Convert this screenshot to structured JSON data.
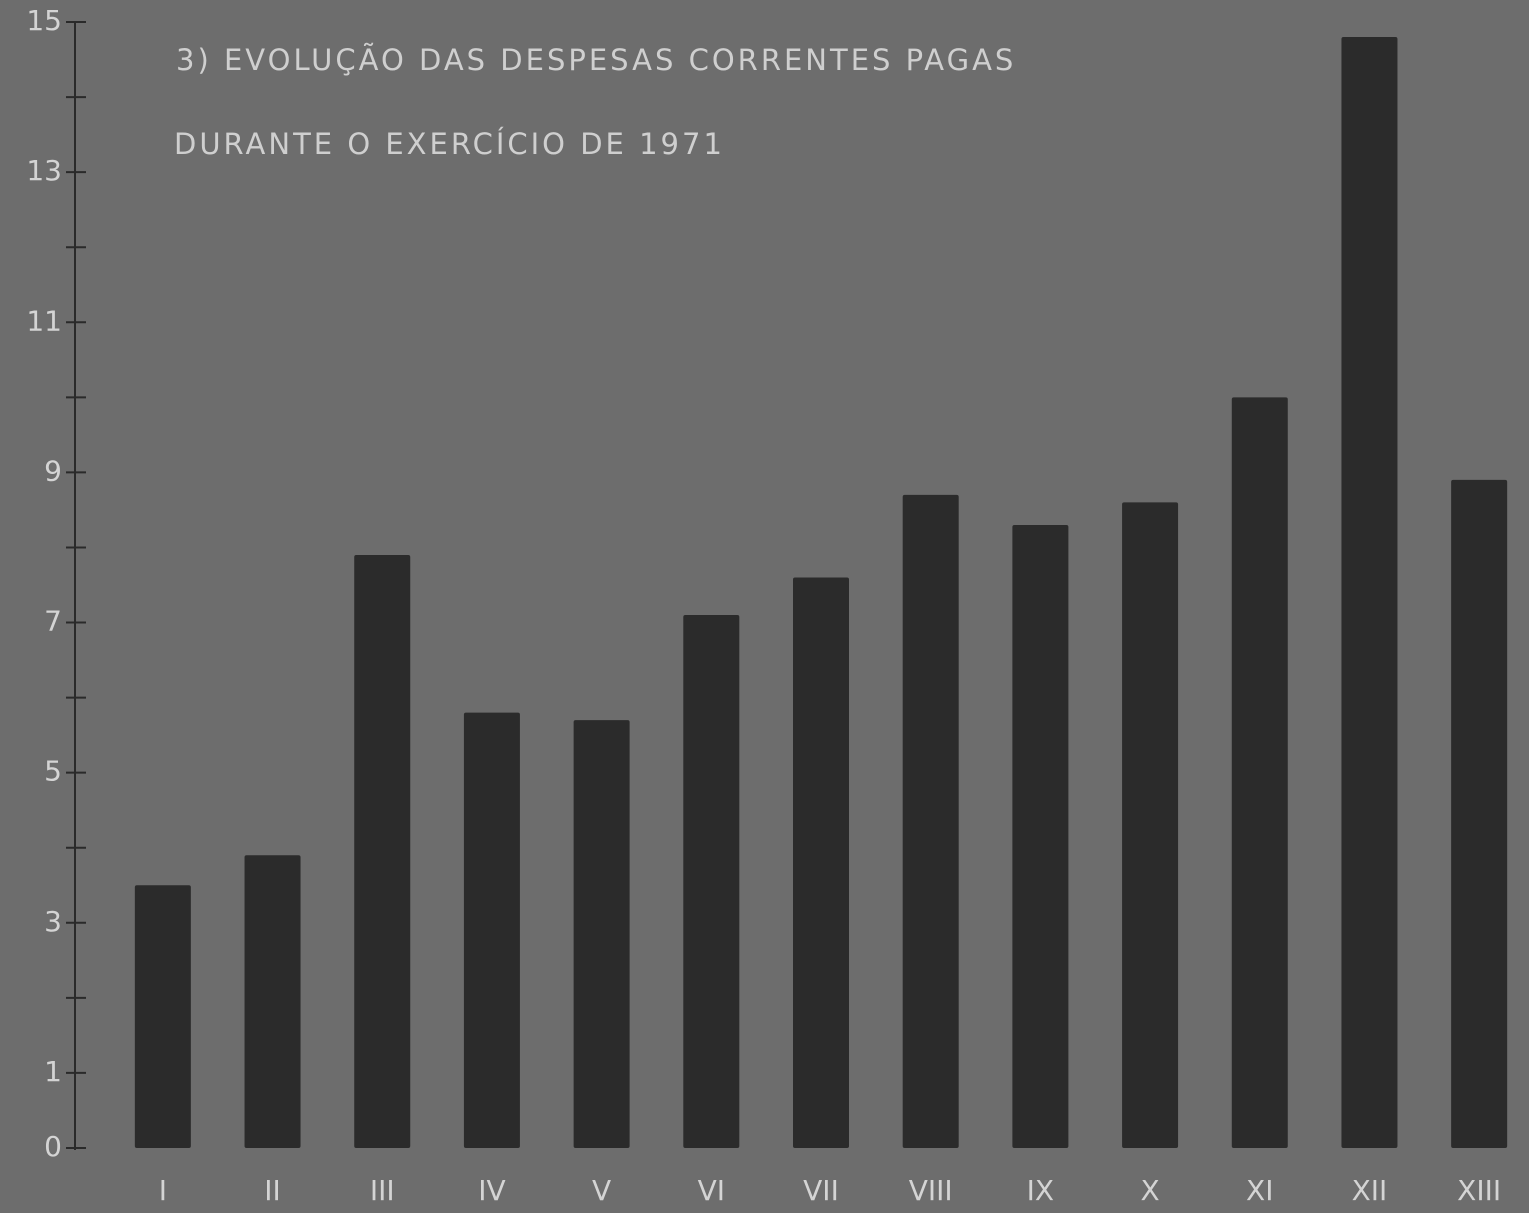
{
  "chart_data": {
    "type": "bar",
    "title": "3) EVOLUÇÃO DAS DESPESAS CORRENTES PAGAS",
    "subtitle": "DURANTE O EXERCÍCIO DE 1971",
    "categories": [
      "I",
      "II",
      "III",
      "IV",
      "V",
      "VI",
      "VII",
      "VIII",
      "IX",
      "X",
      "XI",
      "XII",
      "XIII"
    ],
    "values": [
      3.5,
      3.9,
      7.9,
      5.8,
      5.7,
      7.1,
      7.6,
      8.7,
      8.3,
      8.6,
      10.0,
      14.8,
      8.9
    ],
    "color": "#2b2b2b",
    "ylim": [
      0,
      15
    ],
    "yticks": [
      0,
      1,
      3,
      5,
      7,
      9,
      11,
      13,
      15
    ],
    "minor_yticks": [
      2,
      4,
      6,
      8,
      10,
      12,
      14
    ],
    "grid": false
  }
}
